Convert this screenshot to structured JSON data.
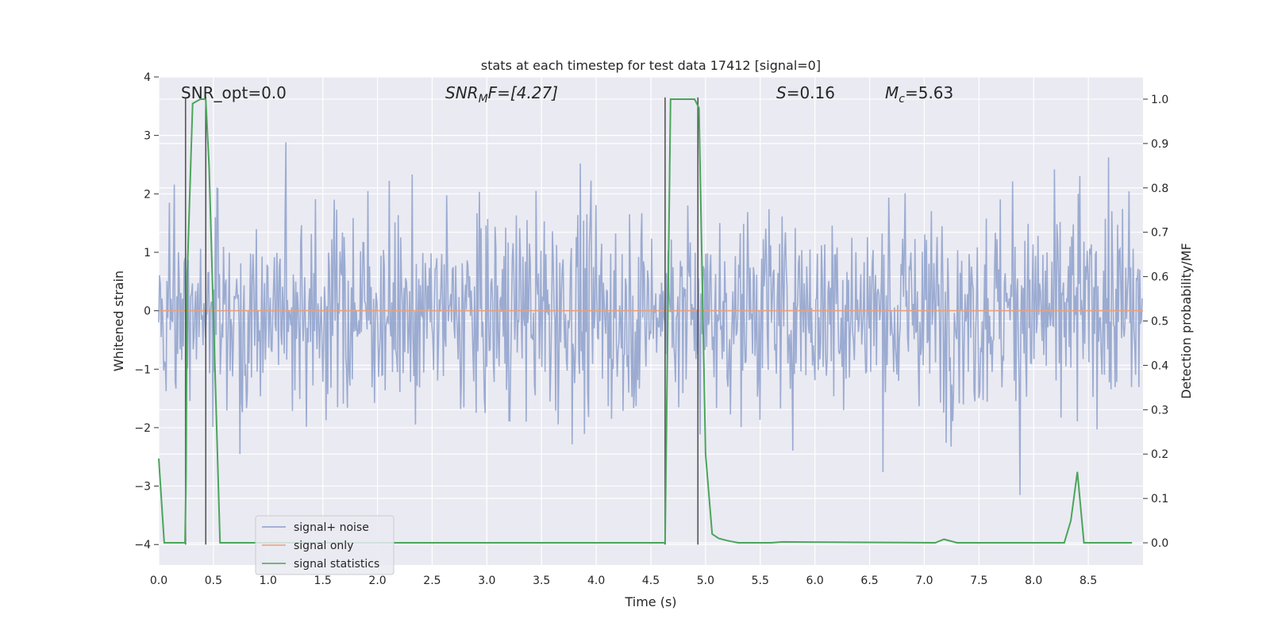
{
  "chart_data": {
    "type": "line",
    "title": "stats at each timestep for test data 17412 [signal=0]",
    "xlabel": "Time (s)",
    "ylabel_left": "Whitened strain",
    "ylabel_right": "Detection probability/MF",
    "xlim": [
      0.0,
      9.0
    ],
    "ylim_left": [
      -4.35,
      4.0
    ],
    "ylim_right": [
      -0.05,
      1.05
    ],
    "x_ticks": [
      0.0,
      0.5,
      1.0,
      1.5,
      2.0,
      2.5,
      3.0,
      3.5,
      4.0,
      4.5,
      5.0,
      5.5,
      6.0,
      6.5,
      7.0,
      7.5,
      8.0,
      8.5
    ],
    "x_tick_labels": [
      "0.0",
      "0.5",
      "1.0",
      "1.5",
      "2.0",
      "2.5",
      "3.0",
      "3.5",
      "4.0",
      "4.5",
      "5.0",
      "5.5",
      "6.0",
      "6.5",
      "7.0",
      "7.5",
      "8.0",
      "8.5"
    ],
    "y_left_ticks": [
      -4,
      -3,
      -2,
      -1,
      0,
      1,
      2,
      3,
      4
    ],
    "y_left_tick_labels": [
      "−4",
      "−3",
      "−2",
      "−1",
      "0",
      "1",
      "2",
      "3",
      "4"
    ],
    "y_right_ticks": [
      0.0,
      0.1,
      0.2,
      0.3,
      0.4,
      0.5,
      0.6,
      0.7,
      0.8,
      0.9,
      1.0
    ],
    "y_right_tick_labels": [
      "0.0",
      "0.1",
      "0.2",
      "0.3",
      "0.4",
      "0.5",
      "0.6",
      "0.7",
      "0.8",
      "0.9",
      "1.0"
    ],
    "annotations": {
      "snr_opt": "SNR_opt=0.0",
      "snr_mf_main": "SNR",
      "snr_mf_sub": "M",
      "snr_mf_rest": "F=[4.27]",
      "s_var": "S",
      "s_val": "=0.16",
      "mc_var": "M",
      "mc_sub": "c",
      "mc_val": "=5.63"
    },
    "noise": {
      "name": "signal+ noise",
      "color": "#8da0cb",
      "typical_amplitude": 1.45,
      "sample_step": 0.0075,
      "seed": 17412
    },
    "signal": {
      "name": "signal only",
      "color": "#e8a07a",
      "value": 0.0
    },
    "statistics": {
      "name": "signal statistics",
      "color": "#4aa55b",
      "x": [
        0.0,
        0.05,
        0.08,
        0.24,
        0.25,
        0.26,
        0.31,
        0.38,
        0.43,
        0.46,
        0.56,
        4.5,
        4.63,
        4.66,
        4.68,
        4.73,
        4.9,
        4.94,
        5.0,
        5.06,
        5.12,
        5.2,
        5.3,
        5.6,
        5.7,
        7.1,
        7.18,
        7.3,
        8.28,
        8.34,
        8.4,
        8.46,
        8.9
      ],
      "y": [
        0.19,
        0.0,
        0.0,
        0.0,
        0.15,
        0.6,
        0.99,
        1.0,
        1.0,
        0.85,
        0.0,
        0.0,
        0.0,
        0.6,
        1.0,
        1.0,
        1.0,
        0.98,
        0.2,
        0.02,
        0.01,
        0.005,
        0.0,
        0.0,
        0.002,
        0.0,
        0.008,
        0.0,
        0.0,
        0.05,
        0.16,
        0.0,
        0.0
      ]
    },
    "vertical_markers": {
      "color": "#555555",
      "x": [
        0.245,
        0.43,
        4.63,
        4.93
      ],
      "y_range": [
        -4.0,
        3.65
      ]
    },
    "legend": {
      "position": "lower-left",
      "items": [
        "signal+ noise",
        "signal only",
        "signal statistics"
      ]
    },
    "grid": true
  }
}
